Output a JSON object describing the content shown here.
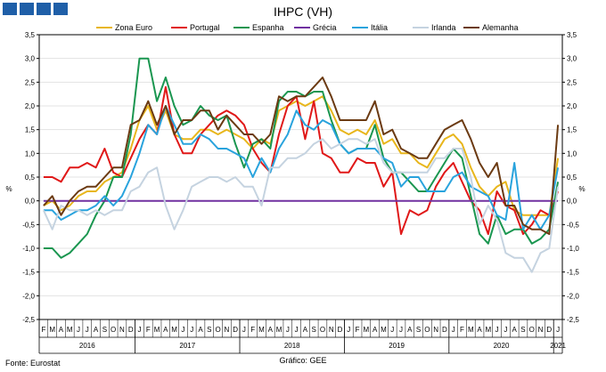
{
  "chart_data": {
    "type": "line",
    "title": "IHPC (VH)",
    "ylabel_left": "%",
    "ylabel_right": "%",
    "ylim": [
      -2.5,
      3.5
    ],
    "yticks": [
      "-2,5",
      "-2,0",
      "-1,5",
      "-1,0",
      "-0,5",
      "0,0",
      "0,5",
      "1,0",
      "1,5",
      "2,0",
      "2,5",
      "3,0",
      "3,5"
    ],
    "month_labels": [
      "F",
      "M",
      "A",
      "M",
      "J",
      "J",
      "A",
      "S",
      "O",
      "N",
      "D",
      "J",
      "F",
      "M",
      "A",
      "M",
      "J",
      "J",
      "A",
      "S",
      "O",
      "N",
      "D",
      "J",
      "F",
      "M",
      "A",
      "M",
      "J",
      "J",
      "A",
      "S",
      "O",
      "N",
      "D",
      "J",
      "F",
      "M",
      "A",
      "M",
      "J",
      "J",
      "A",
      "S",
      "O",
      "N",
      "D",
      "J",
      "F",
      "M",
      "A",
      "M",
      "J",
      "J",
      "A",
      "S",
      "O",
      "N",
      "D",
      "J"
    ],
    "year_labels": [
      "2016",
      "2017",
      "2018",
      "2019",
      "2020",
      "2021"
    ],
    "grid": true,
    "legend": "top",
    "series": [
      {
        "name": "Zona Euro",
        "color": "#e8b61c",
        "values": [
          -0.1,
          0.0,
          -0.2,
          -0.1,
          0.1,
          0.2,
          0.2,
          0.4,
          0.5,
          0.6,
          1.1,
          1.7,
          2.0,
          1.5,
          1.9,
          1.4,
          1.3,
          1.3,
          1.5,
          1.5,
          1.4,
          1.5,
          1.4,
          1.3,
          1.1,
          1.3,
          1.2,
          1.9,
          2.0,
          2.1,
          2.0,
          2.1,
          2.2,
          1.9,
          1.5,
          1.4,
          1.5,
          1.4,
          1.7,
          1.2,
          1.3,
          1.0,
          1.0,
          0.8,
          0.7,
          1.0,
          1.3,
          1.4,
          1.2,
          0.7,
          0.3,
          0.1,
          0.3,
          0.4,
          -0.2,
          -0.3,
          -0.3,
          -0.3,
          -0.3,
          0.9
        ]
      },
      {
        "name": "Portugal",
        "color": "#e01818",
        "values": [
          0.5,
          0.5,
          0.4,
          0.7,
          0.7,
          0.8,
          0.7,
          1.1,
          0.6,
          0.5,
          0.9,
          1.3,
          1.6,
          1.4,
          2.4,
          1.4,
          1.0,
          1.0,
          1.4,
          1.6,
          1.8,
          1.9,
          1.8,
          1.6,
          1.1,
          0.8,
          0.6,
          1.4,
          2.0,
          2.2,
          1.3,
          2.1,
          1.0,
          0.9,
          0.6,
          0.6,
          0.9,
          0.8,
          0.8,
          0.3,
          0.6,
          -0.7,
          -0.2,
          -0.3,
          -0.2,
          0.3,
          0.6,
          0.8,
          0.4,
          0.0,
          -0.2,
          -0.7,
          0.2,
          -0.1,
          -0.2,
          -0.7,
          -0.5,
          -0.2,
          -0.3,
          0.2
        ]
      },
      {
        "name": "Espanha",
        "color": "#1a9650",
        "values": [
          -1.0,
          -1.0,
          -1.2,
          -1.1,
          -0.9,
          -0.7,
          -0.3,
          0.0,
          0.5,
          0.5,
          1.4,
          3.0,
          3.0,
          2.1,
          2.6,
          2.0,
          1.6,
          1.7,
          2.0,
          1.8,
          1.7,
          1.8,
          1.2,
          0.7,
          1.2,
          1.3,
          1.1,
          2.1,
          2.3,
          2.3,
          2.2,
          2.3,
          2.3,
          1.7,
          1.2,
          1.0,
          1.1,
          1.1,
          1.6,
          0.9,
          0.6,
          0.6,
          0.4,
          0.2,
          0.2,
          0.5,
          0.8,
          1.1,
          0.9,
          0.1,
          -0.7,
          -0.9,
          -0.3,
          -0.7,
          -0.6,
          -0.6,
          -0.9,
          -0.8,
          -0.6,
          0.4
        ]
      },
      {
        "name": "Grécia",
        "color": "#7030a0",
        "values": [
          0.0,
          0.0,
          0.0,
          0.0,
          0.0,
          0.0,
          0.0,
          0.0,
          0.0,
          0.0,
          0.0,
          0.0,
          0.0,
          0.0,
          0.0,
          0.0,
          0.0,
          0.0,
          0.0,
          0.0,
          0.0,
          0.0,
          0.0,
          0.0,
          0.0,
          0.0,
          0.0,
          0.0,
          0.0,
          0.0,
          0.0,
          0.0,
          0.0,
          0.0,
          0.0,
          0.0,
          0.0,
          0.0,
          0.0,
          0.0,
          0.0,
          0.0,
          0.0,
          0.0,
          0.0,
          0.0,
          0.0,
          0.0,
          0.0,
          0.0,
          0.0,
          0.0,
          0.0,
          0.0,
          0.0,
          0.0,
          0.0,
          0.0,
          0.0,
          0.0
        ]
      },
      {
        "name": "Itália",
        "color": "#29a3dd",
        "values": [
          -0.2,
          -0.2,
          -0.4,
          -0.3,
          -0.2,
          -0.2,
          -0.1,
          0.1,
          -0.1,
          0.1,
          0.5,
          1.0,
          1.6,
          1.4,
          2.0,
          1.6,
          1.2,
          1.2,
          1.4,
          1.3,
          1.1,
          1.1,
          1.0,
          0.9,
          0.5,
          0.9,
          0.6,
          1.1,
          1.4,
          1.9,
          1.6,
          1.5,
          1.7,
          1.6,
          1.2,
          1.0,
          1.1,
          1.1,
          1.1,
          0.9,
          0.8,
          0.3,
          0.5,
          0.5,
          0.2,
          0.2,
          0.2,
          0.5,
          0.6,
          0.3,
          0.2,
          0.1,
          -0.3,
          -0.4,
          0.8,
          -0.6,
          -0.3,
          -0.6,
          -0.3,
          0.7
        ]
      },
      {
        "name": "Irlanda",
        "color": "#c5d3e0",
        "values": [
          -0.2,
          -0.6,
          -0.1,
          -0.2,
          -0.2,
          -0.3,
          -0.2,
          -0.3,
          -0.2,
          -0.2,
          0.2,
          0.3,
          0.6,
          0.7,
          -0.1,
          -0.6,
          -0.2,
          0.3,
          0.4,
          0.5,
          0.5,
          0.4,
          0.5,
          0.3,
          0.3,
          -0.1,
          0.7,
          0.7,
          0.9,
          0.9,
          1.0,
          1.2,
          1.3,
          1.1,
          1.2,
          1.3,
          1.3,
          1.2,
          1.3,
          0.8,
          0.6,
          0.6,
          0.6,
          0.6,
          0.6,
          0.9,
          0.9,
          1.1,
          1.1,
          0.5,
          -0.5,
          -0.1,
          -0.4,
          -1.1,
          -1.2,
          -1.2,
          -1.5,
          -1.1,
          -1.0,
          0.3
        ]
      },
      {
        "name": "Alemanha",
        "color": "#6b3a12",
        "values": [
          -0.1,
          0.1,
          -0.3,
          0.0,
          0.2,
          0.3,
          0.3,
          0.5,
          0.7,
          0.7,
          1.6,
          1.7,
          2.1,
          1.6,
          2.0,
          1.4,
          1.7,
          1.7,
          1.9,
          1.9,
          1.5,
          1.8,
          1.6,
          1.4,
          1.4,
          1.2,
          1.4,
          2.2,
          2.1,
          2.2,
          2.2,
          2.4,
          2.6,
          2.2,
          1.7,
          1.7,
          1.7,
          1.7,
          2.1,
          1.4,
          1.5,
          1.1,
          1.0,
          0.9,
          0.9,
          1.2,
          1.5,
          1.6,
          1.7,
          1.3,
          0.8,
          0.5,
          0.8,
          -0.1,
          -0.1,
          -0.5,
          -0.6,
          -0.6,
          -0.7,
          1.6
        ]
      }
    ],
    "footer_left": "Fonte: Eurostat",
    "footer_center": "Gráfico: GEE"
  }
}
